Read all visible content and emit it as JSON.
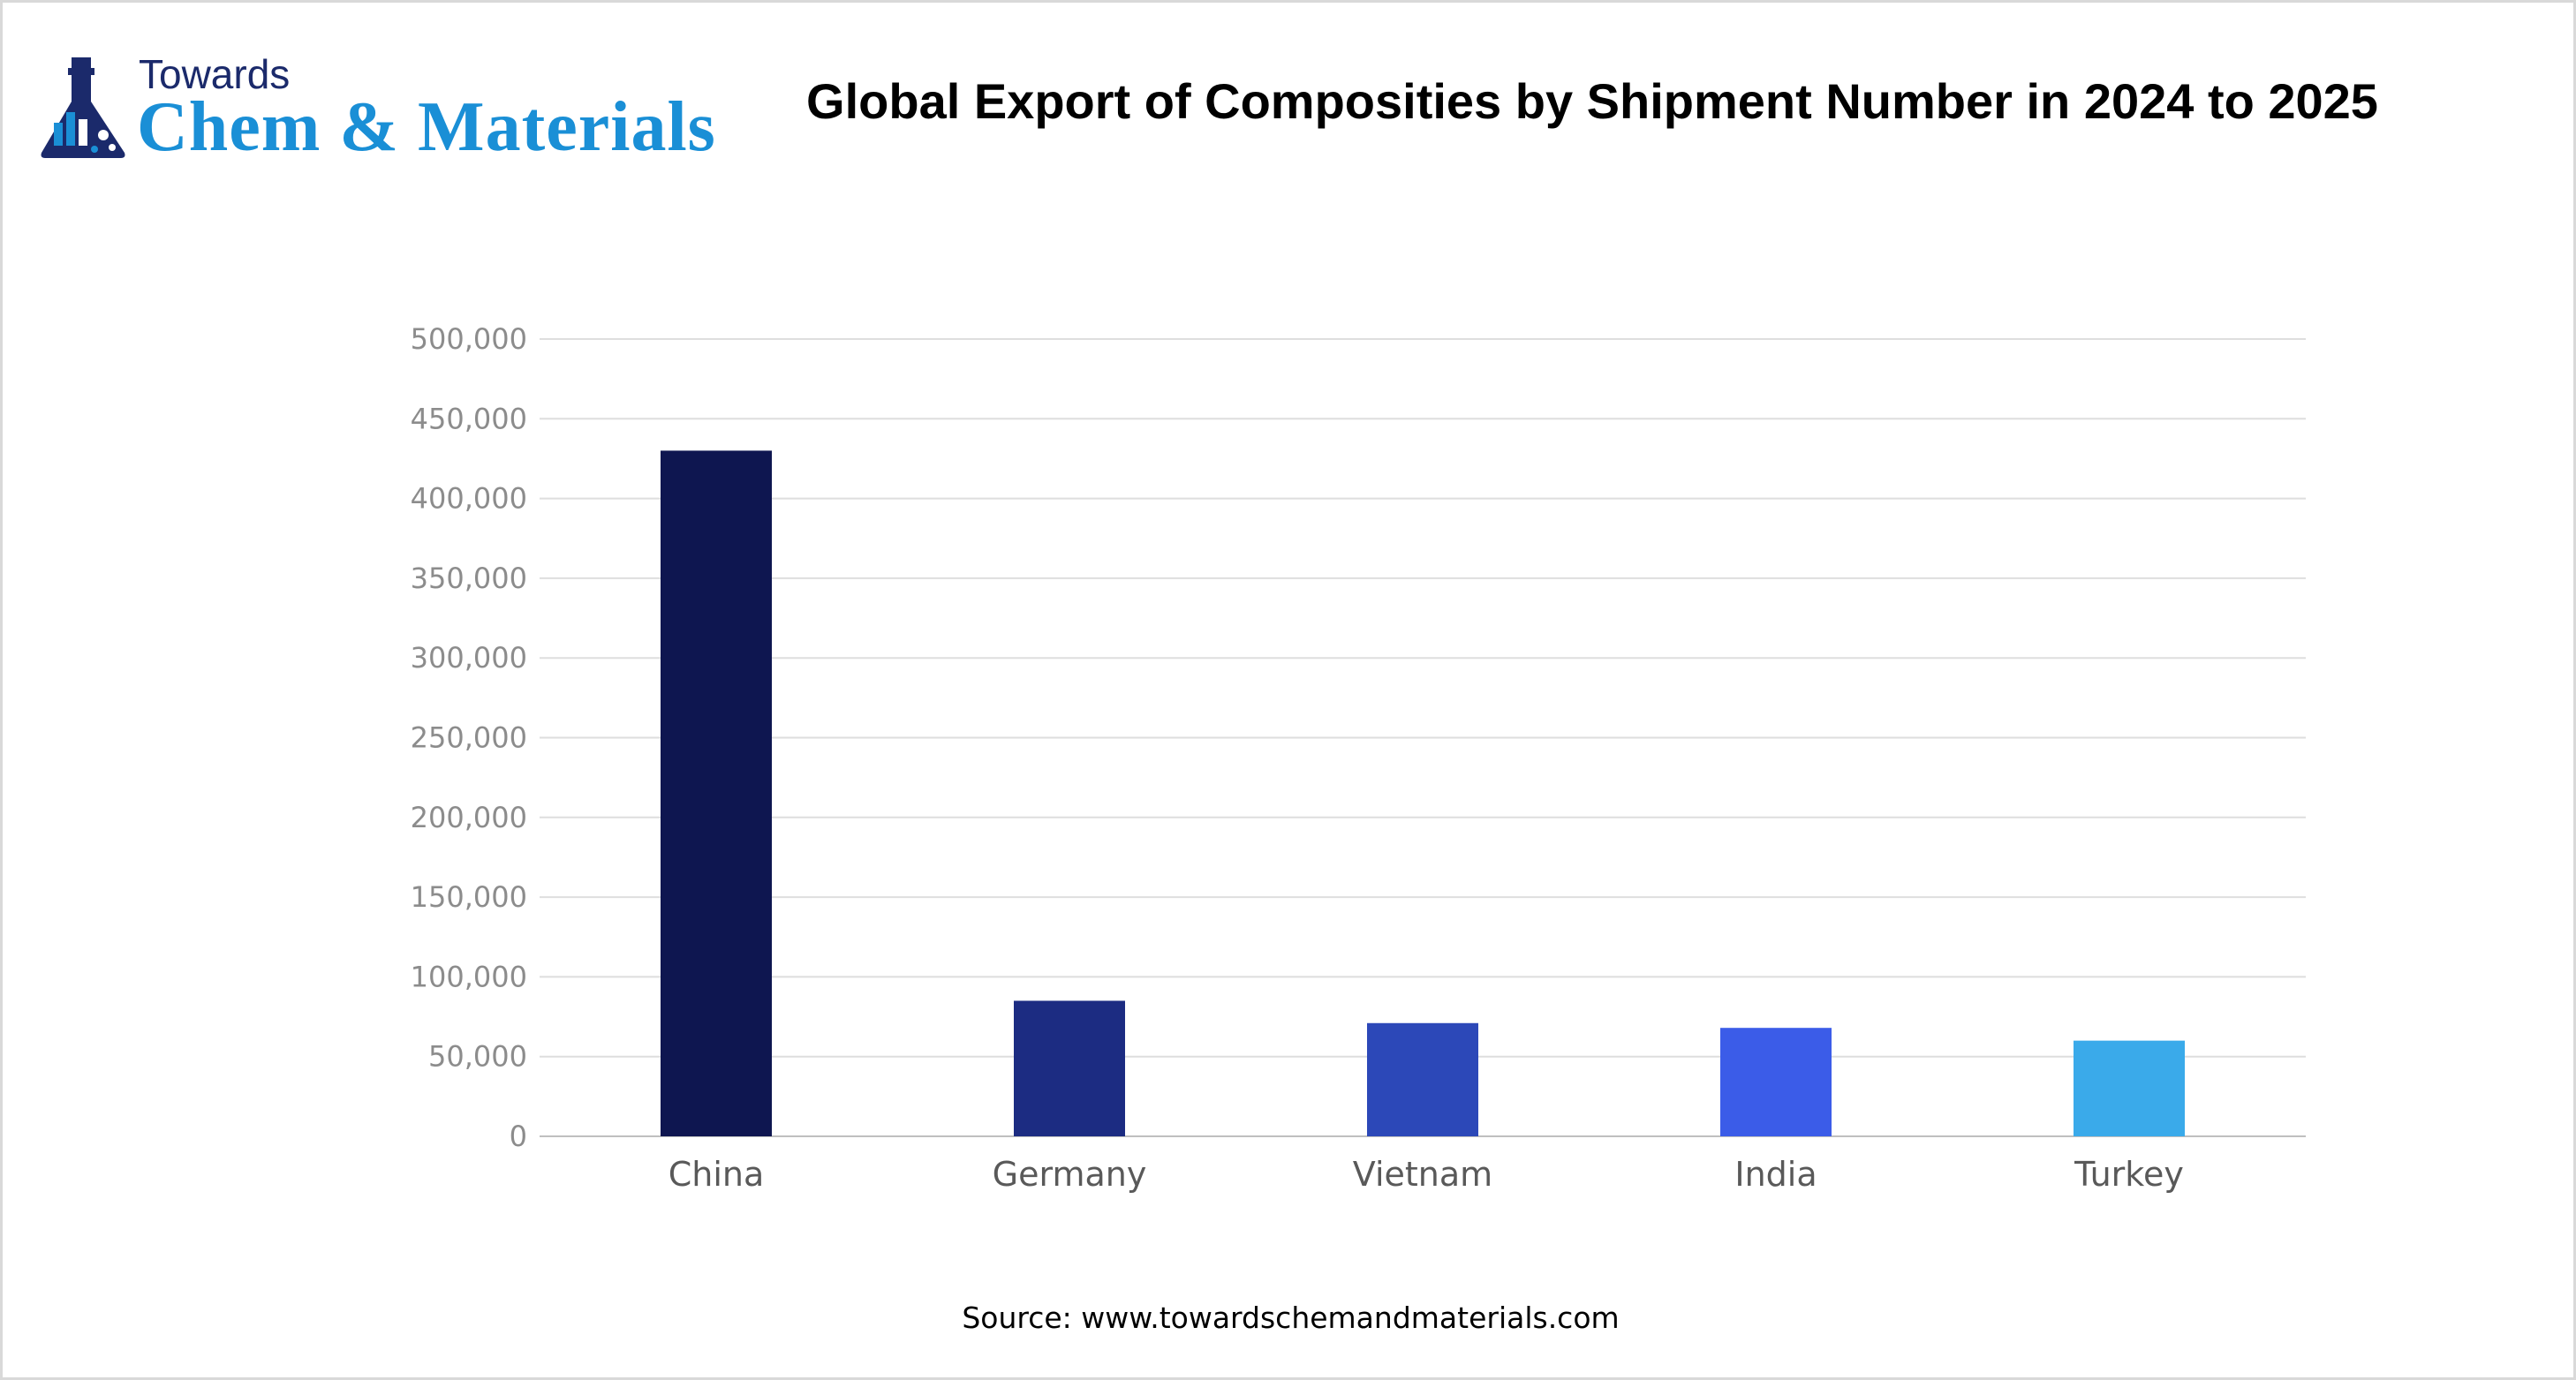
{
  "logo": {
    "top": "Towards",
    "main": "Chem & Materials"
  },
  "chart_data": {
    "type": "bar",
    "title": "Global Export of Composities by Shipment Number in 2024 to 2025",
    "categories": [
      "China",
      "Germany",
      "Vietnam",
      "India",
      "Turkey"
    ],
    "series": [
      {
        "values": [
          430000,
          85000,
          71000,
          68000,
          60000
        ]
      }
    ],
    "colors": [
      "#0e1650",
      "#1c2c82",
      "#2c48b8",
      "#3b5ce8",
      "#3aaaea"
    ],
    "ylim": [
      0,
      500000
    ],
    "yticks": [
      0,
      50000,
      100000,
      150000,
      200000,
      250000,
      300000,
      350000,
      400000,
      450000,
      500000
    ],
    "ytick_labels": [
      "0",
      "50,000",
      "100,000",
      "150,000",
      "200,000",
      "250,000",
      "300,000",
      "350,000",
      "400,000",
      "450,000",
      "500,000"
    ],
    "xlabel": "",
    "ylabel": "",
    "grid": true,
    "legend": "none"
  },
  "source": "Source: www.towardschemandmaterials.com"
}
